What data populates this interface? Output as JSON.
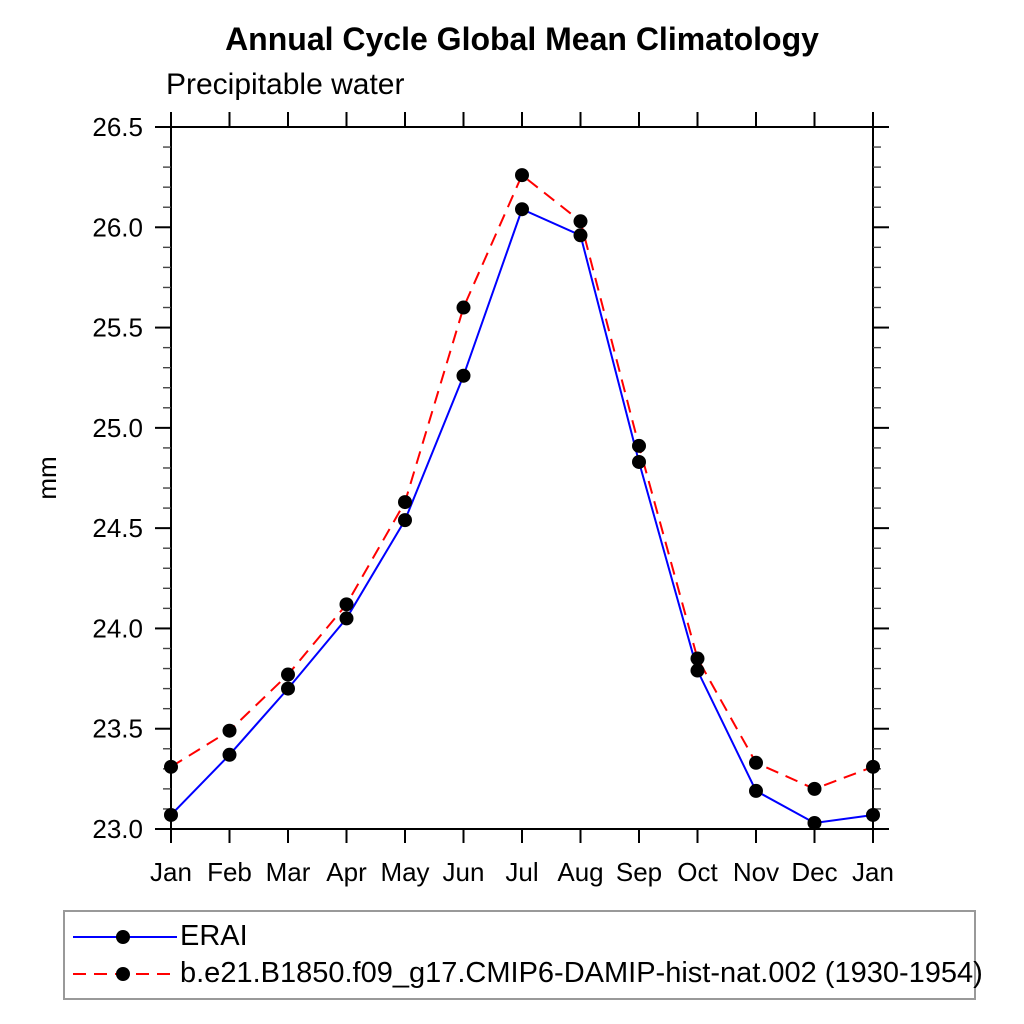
{
  "header": {
    "title": "Annual Cycle Global Mean Climatology",
    "subtitle": "Precipitable water"
  },
  "chart_data": {
    "type": "line",
    "title": "Annual Cycle Global Mean Climatology",
    "subtitle": "Precipitable water",
    "xlabel": "",
    "ylabel": "mm",
    "categories": [
      "Jan",
      "Feb",
      "Mar",
      "Apr",
      "May",
      "Jun",
      "Jul",
      "Aug",
      "Sep",
      "Oct",
      "Nov",
      "Dec",
      "Jan"
    ],
    "ylim": [
      23.0,
      26.5
    ],
    "y_major_ticks": [
      23.0,
      23.5,
      24.0,
      24.5,
      25.0,
      25.5,
      26.0,
      26.5
    ],
    "y_tick_labels": [
      "23.0",
      "23.5",
      "24.0",
      "24.5",
      "25.0",
      "25.5",
      "26.0",
      "26.5"
    ],
    "y_minor_step": 0.1,
    "grid": false,
    "legend_position": "bottom",
    "marker": {
      "shape": "circle",
      "color": "#000000",
      "radius": 7
    },
    "series": [
      {
        "name": "ERAI",
        "color": "#0000ff",
        "style": "solid",
        "values": [
          23.07,
          23.37,
          23.7,
          24.05,
          24.54,
          25.26,
          26.09,
          25.96,
          24.83,
          23.79,
          23.19,
          23.03,
          23.07
        ]
      },
      {
        "name": "b.e21.B1850.f09_g17.CMIP6-DAMIP-hist-nat.002 (1930-1954)",
        "color": "#ff0000",
        "style": "dashed",
        "values": [
          23.31,
          23.49,
          23.77,
          24.12,
          24.63,
          25.6,
          26.26,
          26.03,
          24.91,
          23.85,
          23.33,
          23.2,
          23.31
        ]
      }
    ]
  }
}
